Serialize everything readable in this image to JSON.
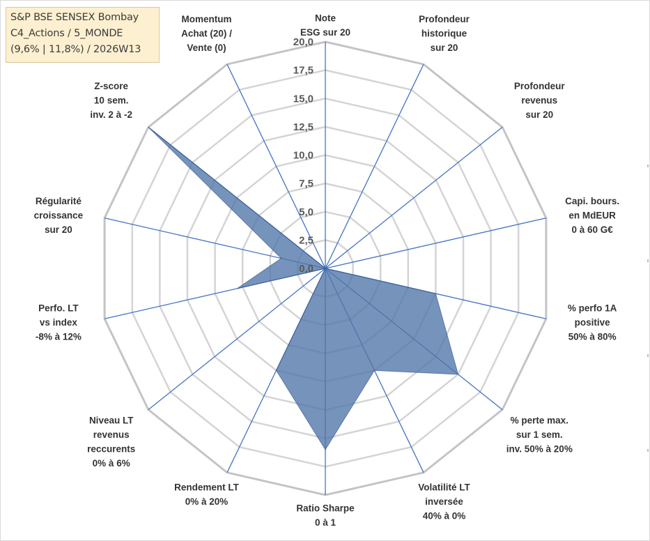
{
  "title": {
    "lines": [
      "S&P BSE SENSEX Bombay",
      "C4_Actions / 5_MONDE",
      "(9,6% | 11,8%) / 2026W13"
    ]
  },
  "chart_data": {
    "type": "radar",
    "rmin": 0,
    "rmax": 20,
    "ticks": [
      "0,0",
      "2,5",
      "5,0",
      "7,5",
      "10,0",
      "12,5",
      "15,0",
      "17,5",
      "20,0"
    ],
    "axes": [
      {
        "label": [
          "Note",
          "ESG sur 20"
        ]
      },
      {
        "label": [
          "Profondeur",
          "historique",
          "sur 20"
        ]
      },
      {
        "label": [
          "Profondeur",
          "revenus",
          "sur 20"
        ]
      },
      {
        "label": [
          "Capi. bours.",
          "en MdEUR",
          "0 à 60 G€"
        ]
      },
      {
        "label": [
          "% perfo 1A",
          "positive",
          "50% à 80%"
        ]
      },
      {
        "label": [
          "% perte max.",
          "sur 1 sem.",
          "inv. 50% à 20%"
        ]
      },
      {
        "label": [
          "Volatilité LT",
          "inversée",
          "40% à 0%"
        ]
      },
      {
        "label": [
          "Ratio Sharpe",
          "0 à 1"
        ]
      },
      {
        "label": [
          "Rendement LT",
          "0% à 20%"
        ]
      },
      {
        "label": [
          "Niveau LT",
          "revenus",
          "reccurents",
          "0% à 6%"
        ]
      },
      {
        "label": [
          "Perfo. LT",
          "vs index",
          "-8% à 12%"
        ]
      },
      {
        "label": [
          "Régularité",
          "croissance",
          "sur 20"
        ]
      },
      {
        "label": [
          "Z-score",
          "10 sem.",
          "inv. 2 à -2"
        ]
      },
      {
        "label": [
          "Momentum",
          "Achat (20) /",
          "Vente (0)"
        ]
      }
    ],
    "series": [
      {
        "values": [
          0,
          0,
          0,
          0,
          10,
          15,
          10,
          16,
          10,
          0,
          8,
          4,
          20,
          0
        ],
        "color": "#4f74a8"
      }
    ],
    "grid": true
  }
}
